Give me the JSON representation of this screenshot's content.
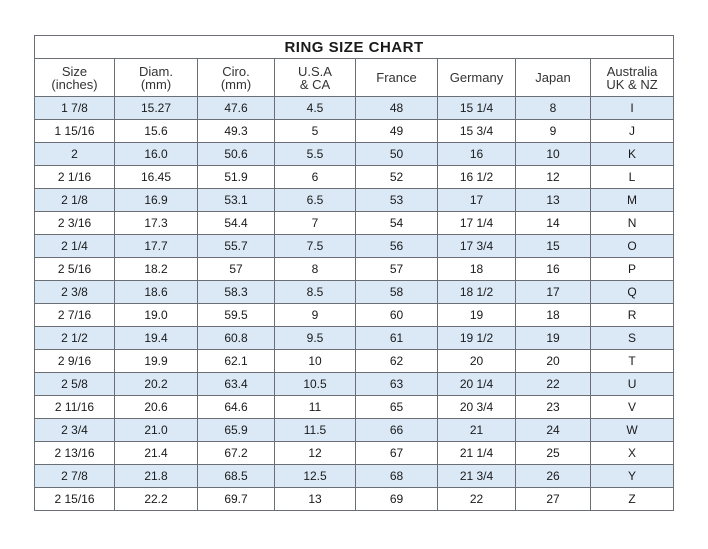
{
  "title": "RING SIZE CHART",
  "colors": {
    "row_stripe": "#dbe9f7",
    "border": "#6b6f75"
  },
  "headers": [
    [
      "Size",
      "(inches)"
    ],
    [
      "Diam.",
      "(mm)"
    ],
    [
      "Ciro.",
      "(mm)"
    ],
    [
      "U.S.A",
      "& CA"
    ],
    [
      "France",
      ""
    ],
    [
      "Germany",
      ""
    ],
    [
      "Japan",
      ""
    ],
    [
      "Australia",
      "UK & NZ"
    ]
  ],
  "rows": [
    [
      "1 7/8",
      "15.27",
      "47.6",
      "4.5",
      "48",
      "15 1/4",
      "8",
      "I"
    ],
    [
      "1 15/16",
      "15.6",
      "49.3",
      "5",
      "49",
      "15 3/4",
      "9",
      "J"
    ],
    [
      "2",
      "16.0",
      "50.6",
      "5.5",
      "50",
      "16",
      "10",
      "K"
    ],
    [
      "2 1/16",
      "16.45",
      "51.9",
      "6",
      "52",
      "16 1/2",
      "12",
      "L"
    ],
    [
      "2 1/8",
      "16.9",
      "53.1",
      "6.5",
      "53",
      "17",
      "13",
      "M"
    ],
    [
      "2 3/16",
      "17.3",
      "54.4",
      "7",
      "54",
      "17 1/4",
      "14",
      "N"
    ],
    [
      "2 1/4",
      "17.7",
      "55.7",
      "7.5",
      "56",
      "17 3/4",
      "15",
      "O"
    ],
    [
      "2 5/16",
      "18.2",
      "57",
      "8",
      "57",
      "18",
      "16",
      "P"
    ],
    [
      "2 3/8",
      "18.6",
      "58.3",
      "8.5",
      "58",
      "18 1/2",
      "17",
      "Q"
    ],
    [
      "2 7/16",
      "19.0",
      "59.5",
      "9",
      "60",
      "19",
      "18",
      "R"
    ],
    [
      "2 1/2",
      "19.4",
      "60.8",
      "9.5",
      "61",
      "19 1/2",
      "19",
      "S"
    ],
    [
      "2 9/16",
      "19.9",
      "62.1",
      "10",
      "62",
      "20",
      "20",
      "T"
    ],
    [
      "2 5/8",
      "20.2",
      "63.4",
      "10.5",
      "63",
      "20 1/4",
      "22",
      "U"
    ],
    [
      "2 11/16",
      "20.6",
      "64.6",
      "11",
      "65",
      "20 3/4",
      "23",
      "V"
    ],
    [
      "2 3/4",
      "21.0",
      "65.9",
      "11.5",
      "66",
      "21",
      "24",
      "W"
    ],
    [
      "2 13/16",
      "21.4",
      "67.2",
      "12",
      "67",
      "21 1/4",
      "25",
      "X"
    ],
    [
      "2 7/8",
      "21.8",
      "68.5",
      "12.5",
      "68",
      "21 3/4",
      "26",
      "Y"
    ],
    [
      "2 15/16",
      "22.2",
      "69.7",
      "13",
      "69",
      "22",
      "27",
      "Z"
    ]
  ]
}
